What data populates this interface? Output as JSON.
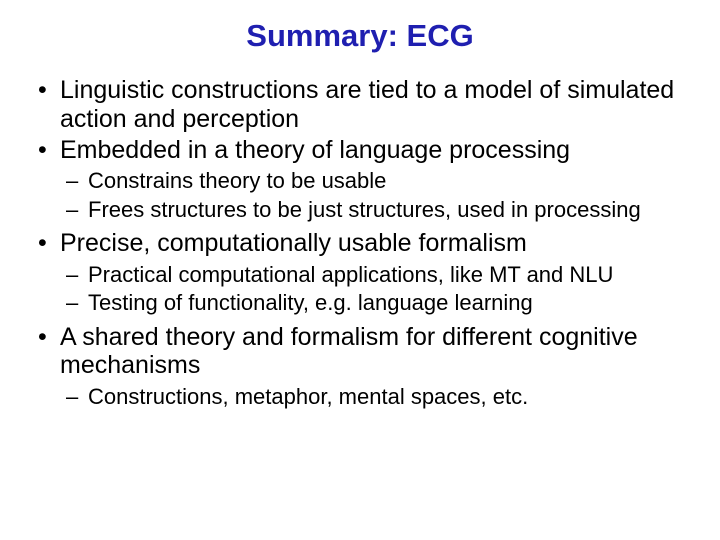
{
  "title": {
    "text": "Summary: ECG",
    "color": "#1f1fb0",
    "fontsize": 31
  },
  "body": {
    "color": "#000000",
    "l1_fontsize": 25,
    "l2_fontsize": 22
  },
  "bullets": [
    {
      "text": "Linguistic constructions are tied to a model of simulated action and perception",
      "sub": []
    },
    {
      "text": "Embedded in a theory of language processing",
      "sub": [
        "Constrains theory to be usable",
        "Frees structures to be just structures, used in processing"
      ]
    },
    {
      "text": "Precise, computationally usable formalism",
      "sub": [
        "Practical computational applications, like MT and NLU",
        "Testing of functionality, e.g. language learning"
      ]
    },
    {
      "text": "A shared theory and formalism for different cognitive mechanisms",
      "sub": [
        "Constructions, metaphor, mental spaces, etc."
      ]
    }
  ]
}
